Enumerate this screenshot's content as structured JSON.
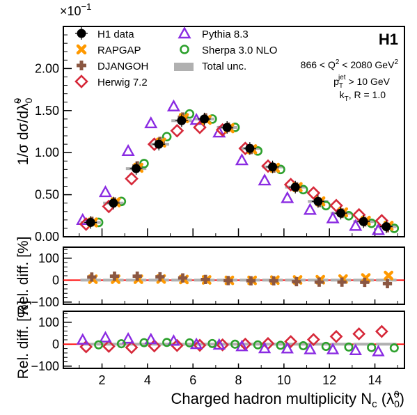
{
  "chart_data": {
    "type": "scatter",
    "x": [
      1.5,
      2.5,
      3.5,
      4.5,
      5.5,
      6.5,
      7.5,
      8.5,
      9.5,
      10.5,
      11.5,
      12.5,
      13.5,
      14.5
    ],
    "xlabel": "Charged hadron multiplicity N",
    "xlabel_sub": "c",
    "xlabel_paren": "(λ̃",
    "xlabel_paren_sup": "0",
    "xlabel_paren_sub": "0",
    "xlabel_paren_close": ")",
    "xlim": [
      0.3,
      15.3
    ],
    "xticks": [
      2,
      4,
      6,
      8,
      10,
      12,
      14
    ],
    "top": {
      "ylabel": "1/σ dσ/dλ̃",
      "ylabel_sup": "0",
      "ylabel_sub": "0",
      "ylim": [
        0,
        2.5
      ],
      "yticks": [
        0,
        0.5,
        1.0,
        1.5,
        2.0
      ],
      "ytick_labels": [
        "0.00",
        "0.50",
        "1.00",
        "1.50",
        "2.00"
      ],
      "multiplier_base": "×10",
      "multiplier_exp": "−1",
      "series": [
        {
          "name": "H1 data",
          "color": "#000000",
          "marker": "circle-filled",
          "values": [
            0.17,
            0.4,
            0.81,
            1.1,
            1.38,
            1.4,
            1.3,
            1.05,
            0.83,
            0.59,
            0.42,
            0.28,
            0.18,
            0.12
          ]
        },
        {
          "name": "RAPGAP",
          "color": "#ff9900",
          "marker": "x-cross",
          "values": [
            0.17,
            0.41,
            0.82,
            1.12,
            1.41,
            1.39,
            1.29,
            1.04,
            0.82,
            0.59,
            0.42,
            0.29,
            0.19,
            0.13
          ]
        },
        {
          "name": "DJANGOH",
          "color": "#8b5742",
          "marker": "plus-thick",
          "values": [
            0.18,
            0.41,
            0.84,
            1.13,
            1.42,
            1.41,
            1.3,
            1.04,
            0.82,
            0.59,
            0.41,
            0.28,
            0.18,
            0.11
          ]
        },
        {
          "name": "Herwig 7.2",
          "color": "#d62839",
          "marker": "diamond-open",
          "values": [
            0.15,
            0.36,
            0.69,
            1.1,
            1.26,
            1.3,
            1.27,
            1.05,
            0.84,
            0.62,
            0.52,
            0.37,
            0.26,
            0.19
          ]
        },
        {
          "name": "Pythia 8.3",
          "color": "#8a2be2",
          "marker": "triangle-open",
          "values": [
            0.2,
            0.53,
            1.02,
            1.35,
            1.55,
            1.39,
            1.24,
            0.91,
            0.67,
            0.46,
            0.32,
            0.22,
            0.13,
            0.08
          ]
        },
        {
          "name": "Sherpa 3.0 NLO",
          "color": "#2ca02c",
          "marker": "circle-open",
          "values": [
            0.17,
            0.42,
            0.87,
            1.19,
            1.46,
            1.4,
            1.3,
            1.02,
            0.8,
            0.56,
            0.37,
            0.25,
            0.16,
            0.1
          ]
        }
      ],
      "uncertainty_label": "Total unc.",
      "uncertainty_color": "#b0b0b0"
    },
    "middle": {
      "ylabel": "Rel. diff. [%]",
      "ylim": [
        -110,
        150
      ],
      "yticks": [
        -100,
        0,
        100
      ],
      "ytick_labels": [
        "−100",
        "0",
        "100"
      ],
      "reference_line_color": "#ff0000",
      "series": [
        {
          "name": "RAPGAP",
          "values": [
            4,
            4,
            4,
            5,
            3,
            1,
            -1,
            -1,
            0,
            1,
            2,
            5,
            10,
            21
          ]
        },
        {
          "name": "DJANGOH",
          "values": [
            14,
            18,
            18,
            15,
            10,
            3,
            -2,
            -3,
            -3,
            -7,
            -9,
            -9,
            -10,
            -16
          ]
        }
      ]
    },
    "bottom": {
      "ylabel": "Rel. diff. [%]",
      "ylim": [
        -110,
        150
      ],
      "yticks": [
        -100,
        0,
        100
      ],
      "ytick_labels": [
        "−100",
        "0",
        "100"
      ],
      "reference_line_color": "#ff0000",
      "series": [
        {
          "name": "Herwig 7.2",
          "values": [
            -12,
            -10,
            -15,
            -8,
            -6,
            -5,
            -3,
            0,
            3,
            12,
            21,
            35,
            47,
            58
          ]
        },
        {
          "name": "Pythia 8.3",
          "values": [
            20,
            30,
            25,
            22,
            15,
            0,
            -3,
            -10,
            -19,
            -20,
            -24,
            -24,
            -28,
            -33
          ]
        },
        {
          "name": "Sherpa 3.0 NLO",
          "values": [
            -3,
            2,
            7,
            8,
            6,
            3,
            0,
            -3,
            -5,
            -7,
            -10,
            -13,
            -15,
            -17
          ]
        }
      ]
    },
    "legend_placement": "top-left",
    "annotations": {
      "experiment": "H1",
      "q2_text": "866 < Q",
      "q2_sup": "2",
      "q2_mid": " < 2080 GeV",
      "q2_sup2": "2",
      "pt_text": "p",
      "pt_sub": "T",
      "pt_sup": "jet",
      "pt_rest": " > 10 GeV",
      "kt_text": "k",
      "kt_sub": "T",
      "kt_rest": ", R = 1.0"
    }
  }
}
